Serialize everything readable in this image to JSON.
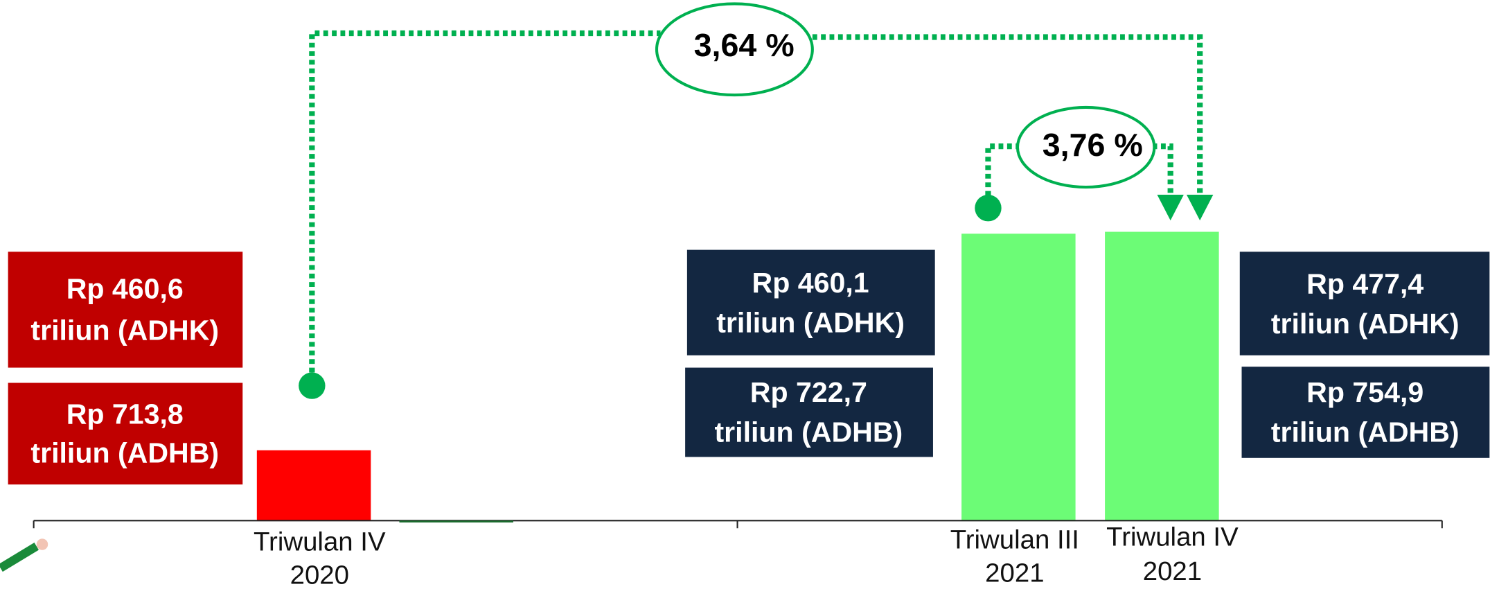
{
  "periods": [
    {
      "label": [
        "Triwulan IV",
        "2020"
      ],
      "adhk": [
        "Rp 460,6",
        "triliun (ADHK)"
      ],
      "adhb": [
        "Rp 713,8",
        "triliun (ADHB)"
      ]
    },
    {
      "label": [
        "Triwulan III",
        "2021"
      ],
      "adhk": [
        "Rp 460,1",
        "triliun (ADHK)"
      ],
      "adhb": [
        "Rp 722,7",
        "triliun (ADHB)"
      ]
    },
    {
      "label": [
        "Triwulan IV",
        "2021"
      ],
      "adhk": [
        "Rp 477,4",
        "triliun (ADHK)"
      ],
      "adhb": [
        "Rp 754,9",
        "triliun (ADHB)"
      ]
    }
  ],
  "growth": [
    "3,64 %",
    "3,76 %"
  ]
}
